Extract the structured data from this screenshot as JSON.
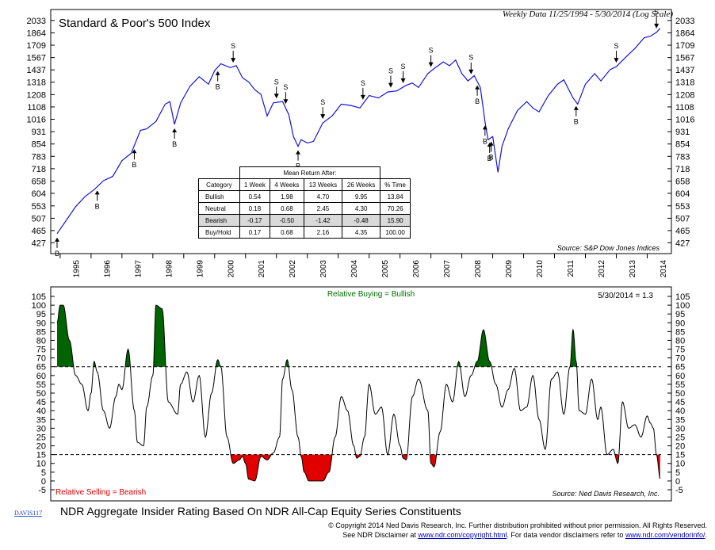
{
  "header": {
    "title": "Standard & Poor's 500 Index",
    "subtitle": "Weekly Data 11/25/1994 - 5/30/2014 (Log Scale)",
    "source_top": "Source: S&P Dow Jones Indices",
    "source_bottom": "Source: Ned Davis Research, Inc.",
    "relative_buying": "Relative Buying = Bullish",
    "relative_selling": "Relative Selling = Bearish",
    "latest_reading": "5/30/2014 = 1.3",
    "davis_code": "DAVIS117",
    "bottom_title": "NDR Aggregate Insider Rating Based On NDR All-Cap Equity Series Constituents",
    "copyright": "© Copyright 2014 Ned Davis Research, Inc.  Further distribution prohibited without prior permission.  All Rights Reserved.",
    "disclaimer_pre": "See NDR Disclaimer at ",
    "disclaimer_link1": "www.ndr.com/copyright.html",
    "disclaimer_mid": ". For data vendor disclaimers refer to ",
    "disclaimer_link2": "www.ndr.com/vendorinfo/",
    "disclaimer_post": "."
  },
  "mean_return_table": {
    "caption": "Mean Return After:",
    "columns": [
      "Category",
      "1 Week",
      "4 Weeks",
      "13 Weeks",
      "26 Weeks",
      "% Time"
    ],
    "rows": [
      [
        "Bullish",
        "0.54",
        "1.98",
        "4.70",
        "9.95",
        "13.84"
      ],
      [
        "Neutral",
        "0.18",
        "0.68",
        "2.45",
        "4.30",
        "70.26"
      ],
      [
        "Bearish",
        "-0.17",
        "-0.50",
        "-1.42",
        "-0.48",
        "15.90"
      ],
      [
        "Buy/Hold",
        "0.17",
        "0.68",
        "2.16",
        "4.35",
        "100.00"
      ]
    ]
  },
  "colors": {
    "sp500_line": "#1515d6",
    "bullish_fill": "#006400",
    "bearish_fill": "#e00000",
    "buying_text": "#007000",
    "selling_text": "#e00000"
  },
  "chart_data": [
    {
      "type": "line",
      "title": "Standard & Poor's 500 Index",
      "scale": "log",
      "ylim": [
        400,
        2100
      ],
      "y_ticks": [
        "2033",
        "1864",
        "1709",
        "1567",
        "1437",
        "1318",
        "1208",
        "1108",
        "1016",
        "931",
        "854",
        "783",
        "718",
        "658",
        "604",
        "553",
        "507",
        "465",
        "427"
      ],
      "x_ticks": [
        "1995",
        "1996",
        "1997",
        "1998",
        "1999",
        "2000",
        "2001",
        "2002",
        "2003",
        "2004",
        "2005",
        "2006",
        "2007",
        "2008",
        "2009",
        "2010",
        "2011",
        "2012",
        "2013",
        "2014"
      ],
      "series": [
        {
          "x": [
            1994.9,
            1995.2,
            1995.5,
            1995.8,
            1996.1,
            1996.4,
            1996.7,
            1997.0,
            1997.3,
            1997.6,
            1997.8,
            1998.1,
            1998.4,
            1998.55,
            1998.7,
            1998.9,
            1999.2,
            1999.5,
            1999.8,
            2000.0,
            2000.2,
            2000.5,
            2000.7,
            2000.9,
            2001.1,
            2001.3,
            2001.5,
            2001.7,
            2001.9,
            2002.2,
            2002.4,
            2002.55,
            2002.7,
            2002.8,
            2003.0,
            2003.2,
            2003.5,
            2003.8,
            2004.1,
            2004.4,
            2004.7,
            2005.0,
            2005.3,
            2005.6,
            2005.9,
            2006.2,
            2006.4,
            2006.6,
            2006.9,
            2007.1,
            2007.4,
            2007.6,
            2007.8,
            2008.0,
            2008.2,
            2008.4,
            2008.6,
            2008.75,
            2008.85,
            2009.0,
            2009.17,
            2009.3,
            2009.5,
            2009.8,
            2010.1,
            2010.3,
            2010.5,
            2010.8,
            2011.1,
            2011.3,
            2011.6,
            2011.75,
            2012.0,
            2012.3,
            2012.5,
            2012.8,
            2013.0,
            2013.3,
            2013.6,
            2013.9,
            2014.1,
            2014.3,
            2014.42
          ],
          "values": [
            455,
            500,
            550,
            590,
            620,
            660,
            680,
            760,
            800,
            940,
            950,
            1000,
            1130,
            1150,
            980,
            1140,
            1280,
            1370,
            1300,
            1430,
            1500,
            1460,
            1480,
            1360,
            1320,
            1250,
            1210,
            1040,
            1140,
            1150,
            1050,
            900,
            840,
            880,
            860,
            870,
            990,
            1040,
            1130,
            1120,
            1100,
            1200,
            1180,
            1230,
            1240,
            1290,
            1310,
            1270,
            1400,
            1450,
            1520,
            1480,
            1540,
            1400,
            1330,
            1380,
            1270,
            1000,
            880,
            900,
            700,
            840,
            950,
            1080,
            1150,
            1100,
            1070,
            1200,
            1300,
            1340,
            1180,
            1130,
            1300,
            1400,
            1330,
            1440,
            1470,
            1570,
            1670,
            1800,
            1820,
            1870,
            1924
          ]
        }
      ],
      "annotations": {
        "buy_signals": [
          {
            "x": 1994.9,
            "label": "B"
          },
          {
            "x": 1996.2,
            "label": "B"
          },
          {
            "x": 1997.4,
            "label": "B"
          },
          {
            "x": 1998.7,
            "label": "B"
          },
          {
            "x": 2000.1,
            "label": "B"
          },
          {
            "x": 2002.7,
            "label": "B"
          },
          {
            "x": 2008.5,
            "label": "B"
          },
          {
            "x": 2008.75,
            "label": "B"
          },
          {
            "x": 2008.9,
            "label": "B"
          },
          {
            "x": 2008.95,
            "label": "B"
          },
          {
            "x": 2011.7,
            "label": "B"
          }
        ],
        "sell_signals": [
          {
            "x": 2000.6,
            "label": "S"
          },
          {
            "x": 2002.0,
            "label": "S"
          },
          {
            "x": 2002.3,
            "label": "S"
          },
          {
            "x": 2003.5,
            "label": "S"
          },
          {
            "x": 2004.8,
            "label": "S"
          },
          {
            "x": 2005.7,
            "label": "S"
          },
          {
            "x": 2006.1,
            "label": "S"
          },
          {
            "x": 2007.0,
            "label": "S"
          },
          {
            "x": 2008.3,
            "label": "S"
          },
          {
            "x": 2013.0,
            "label": "S"
          },
          {
            "x": 2014.3,
            "label": "S"
          }
        ]
      }
    },
    {
      "type": "area",
      "title": "NDR Aggregate Insider Rating Based On NDR All-Cap Equity Series Constituents",
      "ylim": [
        -5,
        105
      ],
      "y_ticks": [
        "105",
        "100",
        "95",
        "90",
        "85",
        "80",
        "75",
        "70",
        "65",
        "60",
        "55",
        "50",
        "45",
        "40",
        "35",
        "30",
        "25",
        "20",
        "15",
        "10",
        "5",
        "0",
        "-5"
      ],
      "thresholds": {
        "bullish_above": 65,
        "bearish_below": 15
      },
      "latest": {
        "date": "5/30/2014",
        "value": 1.3
      },
      "series": [
        {
          "x": [
            1994.9,
            1995.0,
            1995.1,
            1995.3,
            1995.5,
            1995.7,
            1995.9,
            1996.0,
            1996.1,
            1996.2,
            1996.4,
            1996.6,
            1996.8,
            1996.9,
            1997.0,
            1997.2,
            1997.4,
            1997.5,
            1997.7,
            1997.8,
            1998.0,
            1998.1,
            1998.3,
            1998.5,
            1998.8,
            1998.9,
            1999.1,
            1999.3,
            1999.5,
            1999.7,
            1999.9,
            2000.1,
            2000.2,
            2000.4,
            2000.6,
            2000.8,
            2000.9,
            2001.0,
            2001.1,
            2001.3,
            2001.5,
            2001.7,
            2001.9,
            2002.1,
            2002.2,
            2002.35,
            2002.5,
            2002.7,
            2002.8,
            2002.9,
            2003.05,
            2003.3,
            2003.5,
            2003.7,
            2003.9,
            2004.1,
            2004.3,
            2004.5,
            2004.6,
            2004.7,
            2004.85,
            2005.0,
            2005.2,
            2005.4,
            2005.6,
            2005.8,
            2006.0,
            2006.1,
            2006.2,
            2006.4,
            2006.6,
            2006.9,
            2007.0,
            2007.1,
            2007.3,
            2007.5,
            2007.7,
            2007.9,
            2008.1,
            2008.3,
            2008.5,
            2008.7,
            2008.9,
            2009.1,
            2009.3,
            2009.5,
            2009.7,
            2009.9,
            2010.1,
            2010.3,
            2010.5,
            2010.7,
            2010.9,
            2011.1,
            2011.3,
            2011.5,
            2011.6,
            2011.7,
            2011.8,
            2012.0,
            2012.2,
            2012.4,
            2012.5,
            2012.7,
            2012.9,
            2013.05,
            2013.2,
            2013.4,
            2013.6,
            2013.8,
            2014.0,
            2014.1,
            2014.2,
            2014.3,
            2014.42
          ],
          "values": [
            90,
            100,
            100,
            80,
            60,
            55,
            40,
            50,
            68,
            62,
            40,
            30,
            48,
            55,
            52,
            75,
            40,
            22,
            20,
            42,
            60,
            100,
            98,
            45,
            38,
            55,
            62,
            45,
            60,
            25,
            50,
            69,
            65,
            25,
            10,
            12,
            14,
            10,
            1,
            0,
            14,
            12,
            16,
            25,
            58,
            69,
            52,
            25,
            14,
            5,
            0,
            0,
            0,
            5,
            25,
            48,
            40,
            20,
            13,
            14,
            25,
            55,
            38,
            42,
            15,
            38,
            20,
            13,
            12,
            48,
            58,
            40,
            10,
            8,
            28,
            55,
            45,
            68,
            48,
            60,
            68,
            86,
            68,
            55,
            42,
            52,
            64,
            40,
            42,
            60,
            35,
            18,
            58,
            62,
            38,
            65,
            86,
            68,
            40,
            38,
            58,
            35,
            42,
            15,
            18,
            10,
            45,
            30,
            32,
            25,
            37,
            33,
            30,
            15,
            1.3
          ]
        }
      ]
    }
  ]
}
